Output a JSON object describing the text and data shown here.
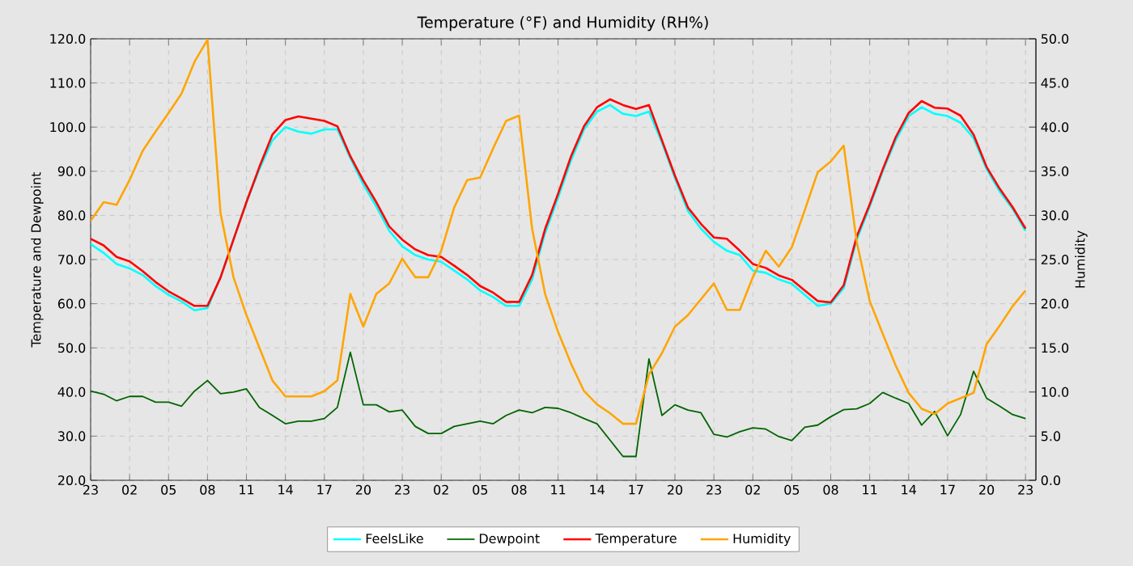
{
  "chart_data": {
    "type": "line",
    "title": "Temperature (°F) and Humidity (RH%)",
    "ylabel": "Temperature and Dewpoint",
    "y2label": "Humidity",
    "categories": [
      "23",
      null,
      null,
      "02",
      null,
      null,
      "05",
      null,
      null,
      "08",
      null,
      null,
      "11",
      null,
      null,
      "14",
      null,
      null,
      "17",
      null,
      null,
      "20",
      null,
      null,
      "23",
      null,
      null,
      "02",
      null,
      null,
      "05",
      null,
      null,
      "08",
      null,
      null,
      "11",
      null,
      null,
      "14",
      null,
      null,
      "17",
      null,
      null,
      "20",
      null,
      null,
      "23",
      null,
      null,
      "02",
      null,
      null,
      "05",
      null,
      null,
      "08",
      null,
      null,
      "11",
      null,
      null,
      "14",
      null,
      null,
      "17",
      null,
      null,
      "20",
      null,
      null,
      "23"
    ],
    "ylim": [
      20,
      120
    ],
    "y2lim": [
      0,
      50
    ],
    "yticks": [
      {
        "value": 20,
        "label": "20.0"
      },
      {
        "value": 30,
        "label": "30.0"
      },
      {
        "value": 40,
        "label": "40.0"
      },
      {
        "value": 50,
        "label": "50.0"
      },
      {
        "value": 60,
        "label": "60.0"
      },
      {
        "value": 70,
        "label": "70.0"
      },
      {
        "value": 80,
        "label": "80.0"
      },
      {
        "value": 90,
        "label": "90.0"
      },
      {
        "value": 100,
        "label": "100.0"
      },
      {
        "value": 110,
        "label": "110.0"
      },
      {
        "value": 120,
        "label": "120.0"
      }
    ],
    "y2ticks": [
      {
        "value": 0,
        "label": "0.0"
      },
      {
        "value": 5,
        "label": "5.0"
      },
      {
        "value": 10,
        "label": "10.0"
      },
      {
        "value": 15,
        "label": "15.0"
      },
      {
        "value": 20,
        "label": "20.0"
      },
      {
        "value": 25,
        "label": "25.0"
      },
      {
        "value": 30,
        "label": "30.0"
      },
      {
        "value": 35,
        "label": "35.0"
      },
      {
        "value": 40,
        "label": "40.0"
      },
      {
        "value": 45,
        "label": "45.0"
      },
      {
        "value": 50,
        "label": "50.0"
      }
    ],
    "grid": true,
    "legend": "bottom",
    "marker": "none",
    "line_style": "solid",
    "series": [
      {
        "name": "FeelsLike",
        "color": "#00ffff",
        "values": [
          73.5,
          71.5,
          69,
          68,
          66.5,
          64,
          62,
          60.5,
          58.5,
          59,
          66,
          74.5,
          83,
          90.5,
          97,
          100,
          99,
          98.5,
          99.5,
          99.5,
          93,
          87,
          82,
          76.5,
          73,
          71,
          70,
          69.5,
          67.5,
          65.5,
          63,
          61.5,
          59.5,
          59.5,
          65.5,
          76,
          84,
          92.5,
          99.5,
          103.5,
          105,
          103,
          102.5,
          103.5,
          96.5,
          88.5,
          81,
          77,
          74,
          72,
          71,
          67.5,
          67,
          65.5,
          64.5,
          62,
          59.5,
          60,
          63.5,
          74.5,
          82,
          90,
          97,
          102.5,
          104.5,
          103,
          102.5,
          101,
          97.5,
          90.5,
          85.5,
          81.5,
          76.5
        ]
      },
      {
        "name": "Dewpoint",
        "color": "#006400",
        "values": [
          40.2,
          39.5,
          38,
          39,
          39,
          37.7,
          37.7,
          36.8,
          40.2,
          42.6,
          39.6,
          40,
          40.7,
          36.5,
          34.7,
          32.8,
          33.4,
          33.4,
          34,
          36.5,
          49,
          37.1,
          37.1,
          35.5,
          35.9,
          32.2,
          30.6,
          30.6,
          32.2,
          32.8,
          33.4,
          32.8,
          34.7,
          35.9,
          35.3,
          36.5,
          36.3,
          35.3,
          34,
          32.8,
          29.1,
          25.4,
          25.4,
          47.5,
          34.7,
          37.1,
          35.9,
          35.3,
          30.4,
          29.8,
          31,
          31.9,
          31.6,
          29.9,
          29,
          32,
          32.5,
          34.4,
          36,
          36.2,
          37.4,
          39.9,
          38.6,
          37.4,
          32.5,
          35.6,
          30.1,
          34.9,
          44.7,
          38.6,
          36.8,
          34.9,
          34
        ]
      },
      {
        "name": "Temperature",
        "color": "#ff0000",
        "values": [
          74.7,
          73.2,
          70.6,
          69.6,
          67.4,
          64.9,
          62.8,
          61.2,
          59.5,
          59.5,
          65.9,
          74.5,
          83,
          91,
          98.3,
          101.6,
          102.4,
          101.9,
          101.4,
          100.2,
          93.4,
          87.9,
          83,
          77.5,
          74.5,
          72.3,
          71,
          70.6,
          68.6,
          66.5,
          64,
          62.5,
          60.4,
          60.4,
          66.5,
          76.9,
          84.9,
          93.4,
          100.2,
          104.5,
          106.3,
          105,
          104.1,
          105,
          97,
          89,
          81.8,
          78.1,
          75,
          74.7,
          72,
          69,
          68.1,
          66.4,
          65.4,
          63,
          60.6,
          60.3,
          64.2,
          75.2,
          82.5,
          90.4,
          97.7,
          103.2,
          105.9,
          104.4,
          104.2,
          102.6,
          98.3,
          91,
          86.1,
          81.9,
          77
        ]
      },
      {
        "name": "Humidity",
        "color": "#ffa500",
        "axis": "y2",
        "values": [
          29.4,
          31.5,
          31.2,
          34,
          37.3,
          39.5,
          41.6,
          43.8,
          47.4,
          49.9,
          30.3,
          23,
          18.7,
          15,
          11.3,
          9.5,
          9.5,
          9.5,
          10.1,
          11.3,
          21.1,
          17.4,
          21.1,
          22.3,
          25.1,
          23,
          23,
          26,
          30.9,
          34,
          34.3,
          37.6,
          40.7,
          41.3,
          28.5,
          21.1,
          16.8,
          13.2,
          10.1,
          8.6,
          7.6,
          6.4,
          6.4,
          12,
          14.4,
          17.4,
          18.7,
          20.5,
          22.3,
          19.3,
          19.3,
          23,
          26,
          24.2,
          26.4,
          30.6,
          34.9,
          36.1,
          37.9,
          27,
          20.3,
          16.6,
          13,
          9.9,
          8.1,
          7.5,
          8.7,
          9.3,
          9.9,
          15.4,
          17.5,
          19.7,
          21.5
        ]
      }
    ]
  }
}
